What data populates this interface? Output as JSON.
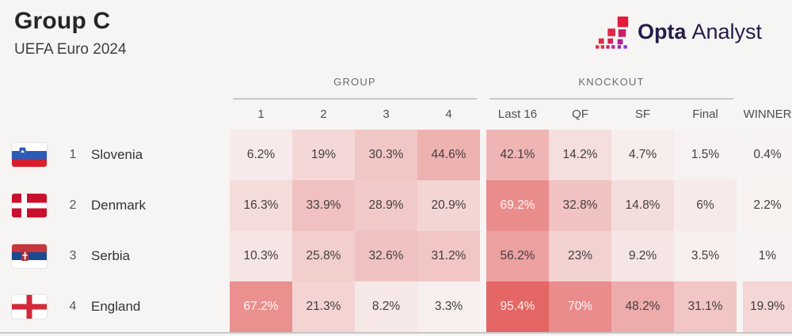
{
  "header": {
    "title": "Group C",
    "subtitle": "UEFA Euro 2024"
  },
  "logo": {
    "opta": "Opta",
    "analyst": "Analyst",
    "icon": "opta-pixel-stairs-icon"
  },
  "table": {
    "section_headers": {
      "group": "GROUP",
      "knockout": "KNOCKOUT"
    },
    "group_columns": [
      "1",
      "2",
      "3",
      "4"
    ],
    "knockout_columns": [
      "Last 16",
      "QF",
      "SF",
      "Final"
    ],
    "winner_label": "WINNER",
    "rows": [
      {
        "rank": "1",
        "team": "Slovenia",
        "flag": "slovenia",
        "cells": [
          "6.2%",
          "19%",
          "30.3%",
          "44.6%",
          "42.1%",
          "14.2%",
          "4.7%",
          "1.5%",
          "0.4%"
        ]
      },
      {
        "rank": "2",
        "team": "Denmark",
        "flag": "denmark",
        "cells": [
          "16.3%",
          "33.9%",
          "28.9%",
          "20.9%",
          "69.2%",
          "32.8%",
          "14.8%",
          "6%",
          "2.2%"
        ]
      },
      {
        "rank": "3",
        "team": "Serbia",
        "flag": "serbia",
        "cells": [
          "10.3%",
          "25.8%",
          "32.6%",
          "31.2%",
          "56.2%",
          "23%",
          "9.2%",
          "3.5%",
          "1%"
        ]
      },
      {
        "rank": "4",
        "team": "England",
        "flag": "england",
        "cells": [
          "67.2%",
          "21.3%",
          "8.2%",
          "3.3%",
          "95.4%",
          "70%",
          "48.2%",
          "31.1%",
          "19.9%"
        ]
      }
    ]
  },
  "chart_data": {
    "type": "heatmap",
    "title": "Group C",
    "subtitle": "UEFA Euro 2024",
    "column_groups": [
      {
        "label": "GROUP",
        "columns": [
          "1",
          "2",
          "3",
          "4"
        ]
      },
      {
        "label": "KNOCKOUT",
        "columns": [
          "Last 16",
          "QF",
          "SF",
          "Final"
        ]
      },
      {
        "label": "",
        "columns": [
          "WINNER"
        ]
      }
    ],
    "columns": [
      "1",
      "2",
      "3",
      "4",
      "Last 16",
      "QF",
      "SF",
      "Final",
      "WINNER"
    ],
    "rows": [
      "Slovenia",
      "Denmark",
      "Serbia",
      "England"
    ],
    "values": [
      [
        6.2,
        19,
        30.3,
        44.6,
        42.1,
        14.2,
        4.7,
        1.5,
        0.4
      ],
      [
        16.3,
        33.9,
        28.9,
        20.9,
        69.2,
        32.8,
        14.8,
        6,
        2.2
      ],
      [
        10.3,
        25.8,
        32.6,
        31.2,
        56.2,
        23,
        9.2,
        3.5,
        1
      ],
      [
        67.2,
        21.3,
        8.2,
        3.3,
        95.4,
        70,
        48.2,
        31.1,
        19.9
      ]
    ],
    "value_format": "percent",
    "legend": "none",
    "color_scale": {
      "low": "#f7f4f3",
      "high": "#e35f5e",
      "white_text_threshold": 60
    }
  },
  "colors": {
    "background": "#f7f5f4",
    "heat_low": "#f7f4f3",
    "heat_high": "#e35f5e",
    "dark_value_text": "#433e3e",
    "light_value_text": "rgba(255,255,255,0.92)",
    "rule_gray": "#c9c8c8"
  }
}
